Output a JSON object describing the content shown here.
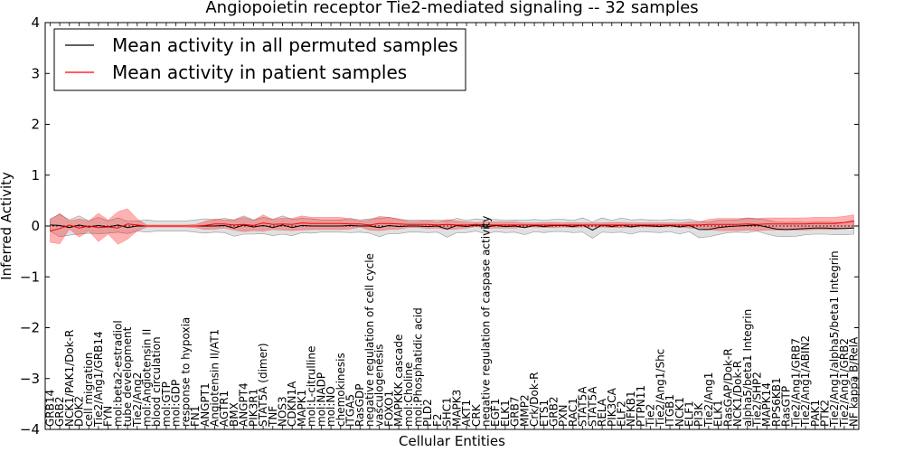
{
  "chart_data": {
    "type": "line",
    "title": "Angiopoietin receptor Tie2-mediated signaling -- 32 samples",
    "xlabel": "Cellular Entities",
    "ylabel": "Inferred Activity",
    "ylim": [
      -4,
      4
    ],
    "yticks": [
      "−4",
      "−3",
      "−2",
      "−1",
      "0",
      "1",
      "2",
      "3",
      "4"
    ],
    "grid": false,
    "legend_position": "top-left",
    "categories": [
      "GRB14",
      "GRB2",
      "NCK1/PAK1/Dok-R",
      "DOK2",
      "cell migration",
      "Tie2/Ang1/GRB14",
      "FYN",
      "mol:beta2-estradiol",
      "tube development",
      "Tie2/Ang2",
      "mol:Angiotensin II",
      "blood circulation",
      "mol:GTP",
      "mol:GDP",
      "response to hypoxia",
      "FN1",
      "ANGPT1",
      "Angiotensin II/AT1",
      "AGTR1",
      "BMX",
      "ANGPT4",
      "PIK3R1",
      "STAT5A (dimer)",
      "TNF",
      "NOS3",
      "CDKN1A",
      "MAPK1",
      "mol:L-citrulline",
      "mol:NADP",
      "mol:NO",
      "chemokinesis",
      "ITGA5",
      "RasGDP",
      "negative regulation of cell cycle",
      "vasculogenesis",
      "FOXO1",
      "MAPKKK cascade",
      "mol:Choline",
      "mol:Phosphatidic acid",
      "PLD2",
      "F2",
      "SHC1",
      "MAPK3",
      "AKT1",
      "CRK",
      "negative regulation of caspase activity",
      "EGF1",
      "ELK1",
      "GRB7",
      "MMP2",
      "Crk/Dok-R",
      "ETS1",
      "GRB2",
      "PXN",
      "RAC1",
      "STAT5A",
      "STAT5A",
      "RELA",
      "PIK3CA",
      "ELF2",
      "NFKB1",
      "PTPN11",
      "Tie2",
      "Tie2/Ang1/Shc",
      "ITGB1",
      "NCK1",
      "ELF1",
      "PI3K",
      "Tie2/Ang1",
      "ELK1",
      "RasGAP/Dok-R",
      "NCK1/Dok-R",
      "alpha5/beta1 Integrin",
      "Tie2/SHP2",
      "MAPK14",
      "RPS6KB1",
      "RasGTP",
      "Tie2/Ang1/GRB7",
      "Tie2/Ang1/ABIN2",
      "PAK1",
      "PTK2",
      "Tie2/Ang1/alpha5/beta1 Integrin",
      "Tie2/Ang1/GRB2",
      "NF kappa B/RelA"
    ],
    "series": [
      {
        "name": "Mean activity in all permuted samples",
        "color": "#000000",
        "values": [
          0.02,
          0.01,
          -0.03,
          0.02,
          -0.02,
          0.01,
          -0.02,
          0.02,
          -0.03,
          0.0,
          0.0,
          0.0,
          0.0,
          0.0,
          0.0,
          0.0,
          0.0,
          0.0,
          0.01,
          -0.04,
          0.02,
          -0.02,
          0.01,
          -0.03,
          0.02,
          -0.03,
          0.01,
          0.0,
          0.0,
          0.0,
          0.0,
          0.01,
          0.0,
          0.0,
          -0.03,
          0.01,
          -0.01,
          0.0,
          0.0,
          -0.01,
          0.0,
          -0.06,
          0.01,
          -0.01,
          0.02,
          -0.02,
          0.01,
          -0.01,
          0.0,
          -0.03,
          0.01,
          -0.01,
          0.01,
          0.01,
          -0.01,
          0.02,
          -0.08,
          0.02,
          -0.01,
          0.02,
          -0.02,
          0.01,
          0.0,
          -0.01,
          0.01,
          -0.02,
          0.01,
          -0.07,
          -0.07,
          -0.03,
          -0.01,
          0.0,
          0.01,
          0.02,
          -0.02,
          -0.06,
          -0.07,
          -0.06,
          -0.05,
          -0.04,
          -0.04,
          -0.05,
          -0.05,
          -0.04
        ],
        "band": [
          0.12,
          0.22,
          0.15,
          0.18,
          0.12,
          0.16,
          0.12,
          0.14,
          0.12,
          0.1,
          0.12,
          0.1,
          0.1,
          0.1,
          0.1,
          0.12,
          0.14,
          0.12,
          0.14,
          0.16,
          0.18,
          0.14,
          0.16,
          0.16,
          0.18,
          0.16,
          0.14,
          0.14,
          0.12,
          0.12,
          0.12,
          0.14,
          0.12,
          0.14,
          0.18,
          0.16,
          0.14,
          0.12,
          0.12,
          0.12,
          0.12,
          0.16,
          0.14,
          0.12,
          0.12,
          0.14,
          0.12,
          0.12,
          0.12,
          0.14,
          0.12,
          0.12,
          0.12,
          0.12,
          0.12,
          0.14,
          0.16,
          0.14,
          0.12,
          0.14,
          0.14,
          0.12,
          0.12,
          0.12,
          0.12,
          0.14,
          0.12,
          0.16,
          0.14,
          0.14,
          0.12,
          0.12,
          0.14,
          0.12,
          0.14,
          0.14,
          0.14,
          0.14,
          0.12,
          0.12,
          0.12,
          0.12,
          0.12,
          0.12
        ]
      },
      {
        "name": "Mean activity in patient samples",
        "color": "#ff0000",
        "values": [
          -0.1,
          -0.05,
          0.02,
          -0.04,
          0.0,
          -0.03,
          -0.02,
          -0.04,
          0.04,
          0.02,
          0.0,
          0.0,
          0.0,
          0.0,
          0.0,
          0.0,
          0.01,
          0.04,
          0.04,
          0.02,
          0.03,
          0.01,
          0.06,
          0.03,
          0.04,
          0.03,
          0.06,
          0.05,
          0.05,
          0.05,
          0.05,
          0.04,
          0.04,
          0.02,
          0.05,
          0.05,
          0.04,
          0.03,
          0.03,
          0.03,
          0.02,
          0.03,
          0.02,
          0.02,
          0.03,
          0.02,
          0.02,
          0.02,
          0.02,
          0.02,
          0.02,
          0.02,
          0.02,
          0.02,
          0.02,
          0.02,
          0.02,
          0.02,
          0.02,
          0.02,
          0.02,
          0.02,
          0.02,
          0.02,
          0.02,
          0.02,
          0.02,
          0.02,
          0.03,
          0.03,
          0.03,
          0.03,
          0.04,
          0.03,
          0.04,
          0.04,
          0.04,
          0.04,
          0.04,
          0.05,
          0.05,
          0.05,
          0.07,
          0.1
        ],
        "band": [
          0.22,
          0.3,
          0.08,
          0.18,
          0.1,
          0.28,
          0.14,
          0.32,
          0.3,
          0.12,
          0.02,
          0.02,
          0.02,
          0.02,
          0.02,
          0.03,
          0.08,
          0.1,
          0.08,
          0.1,
          0.14,
          0.1,
          0.16,
          0.1,
          0.12,
          0.12,
          0.14,
          0.12,
          0.12,
          0.12,
          0.12,
          0.1,
          0.06,
          0.1,
          0.14,
          0.12,
          0.1,
          0.06,
          0.06,
          0.08,
          0.06,
          0.1,
          0.08,
          0.06,
          0.04,
          0.06,
          0.06,
          0.06,
          0.06,
          0.04,
          0.04,
          0.05,
          0.05,
          0.04,
          0.05,
          0.04,
          0.04,
          0.04,
          0.05,
          0.05,
          0.04,
          0.04,
          0.04,
          0.04,
          0.04,
          0.04,
          0.06,
          0.06,
          0.1,
          0.12,
          0.12,
          0.12,
          0.12,
          0.12,
          0.12,
          0.12,
          0.12,
          0.12,
          0.12,
          0.12,
          0.12,
          0.12,
          0.12,
          0.12
        ]
      }
    ]
  }
}
